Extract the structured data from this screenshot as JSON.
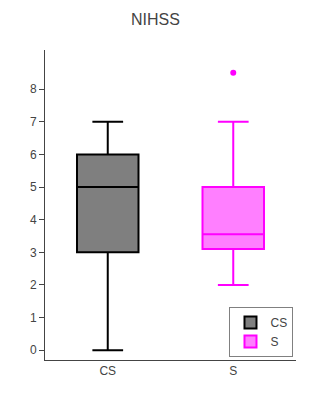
{
  "chart_data": {
    "type": "box",
    "title": "NIHSS",
    "categories": [
      "CS",
      "S"
    ],
    "series": [
      {
        "name": "CS",
        "color": "#000000",
        "min": 0,
        "q1": 3.0,
        "median": 5.0,
        "q3": 6.0,
        "max": 7.0,
        "outliers": []
      },
      {
        "name": "S",
        "color": "#FF00FF",
        "min": 2.0,
        "q1": 3.1,
        "median": 3.55,
        "q3": 5.0,
        "max": 7.0,
        "outliers": [
          8.5
        ]
      }
    ],
    "ylim": [
      -0.3,
      9.2
    ],
    "yticks": [
      0,
      1,
      2,
      3,
      4,
      5,
      6,
      7,
      8
    ],
    "grid": false,
    "legend": "lower right"
  }
}
